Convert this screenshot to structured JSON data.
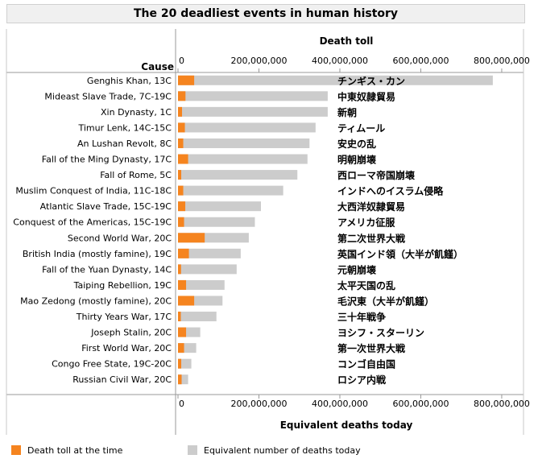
{
  "chart_data": {
    "type": "bar",
    "title": "The 20 deadliest events in human history",
    "top_axis_title": "Death toll",
    "bottom_axis_title": "Equivalent deaths today",
    "category_axis_title": "Cause",
    "xlim": [
      0,
      820000000
    ],
    "ticks": [
      0,
      200000000,
      400000000,
      600000000,
      800000000
    ],
    "tick_labels": [
      "0",
      "200,000,000",
      "400,000,000",
      "600,000,000",
      "800,000,000"
    ],
    "categories": [
      "Genghis Khan, 13C",
      "Mideast Slave Trade, 7C-19C",
      "Xin Dynasty, 1C",
      "Timur Lenk, 14C-15C",
      "An Lushan Revolt, 8C",
      "Fall of the Ming Dynasty, 17C",
      "Fall of Rome, 5C",
      "Muslim Conquest of India, 11C-18C",
      "Atlantic Slave Trade, 15C-19C",
      "Conquest of the Americas, 15C-19C",
      "Second World War, 20C",
      "British India (mostly famine), 19C",
      "Fall of the Yuan Dynasty, 14C",
      "Taiping Rebellion, 19C",
      "Mao Zedong (mostly famine), 20C",
      "Thirty Years War, 17C",
      "Joseph Stalin, 20C",
      "First World War, 20C",
      "Congo Free State, 19C-20C",
      "Russian Civil War, 20C"
    ],
    "japanese_labels": [
      "チンギス・カン",
      "中東奴隷貿易",
      "新朝",
      "ティムール",
      "安史の乱",
      "明朝崩壊",
      "西ローマ帝国崩壊",
      "インドへのイスラム侵略",
      "大西洋奴隷貿易",
      "アメリカ征服",
      "第二次世界大戦",
      "英国インド領（大半が飢饉）",
      "元朝崩壊",
      "太平天国の乱",
      "毛沢東（大半が飢饉）",
      "三十年戦争",
      "ヨシフ・スターリン",
      "第一次世界大戦",
      "コンゴ自由国",
      "ロシア内戦"
    ],
    "series": [
      {
        "name": "Death toll at the time",
        "color": "#f5841f",
        "values": [
          40000000,
          18500000,
          10000000,
          17000000,
          13000000,
          25000000,
          8000000,
          13000000,
          18000000,
          15000000,
          66000000,
          27000000,
          7500000,
          20000000,
          40000000,
          7000000,
          20000000,
          15000000,
          8000000,
          9000000
        ]
      },
      {
        "name": "Equivalent number of deaths today",
        "color": "#cccccc",
        "values": [
          778000000,
          370000000,
          370000000,
          340000000,
          325000000,
          320000000,
          295000000,
          260000000,
          205000000,
          190000000,
          175000000,
          155000000,
          145000000,
          115000000,
          110000000,
          95000000,
          55000000,
          45000000,
          33000000,
          25000000
        ]
      }
    ]
  }
}
